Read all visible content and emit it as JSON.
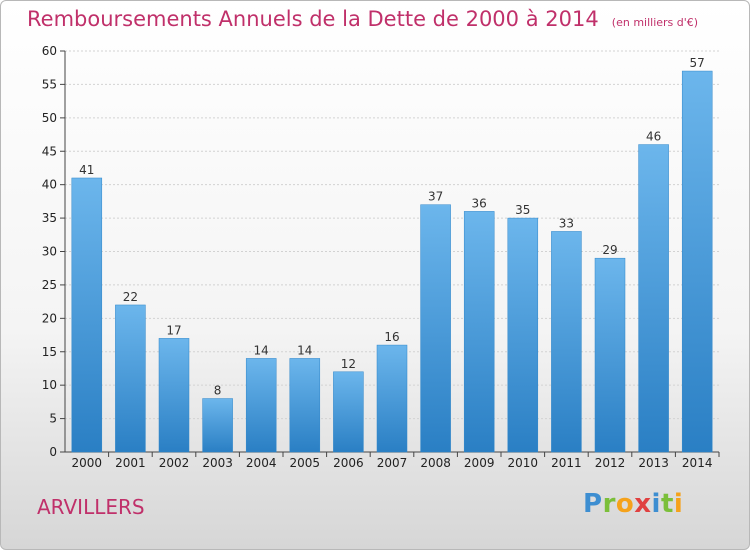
{
  "title": "Remboursements Annuels de la Dette de 2000 à 2014",
  "unit": "(en milliers d'€)",
  "commune": "ARVILLERS",
  "logo": "Proxiti",
  "colors": {
    "bar_light": "#6cb6ec",
    "bar_dark": "#2a7fc4",
    "title": "#c0306a"
  },
  "chart_data": {
    "type": "bar",
    "title": "Remboursements Annuels de la Dette de 2000 à 2014",
    "xlabel": "",
    "ylabel": "",
    "categories": [
      "2000",
      "2001",
      "2002",
      "2003",
      "2004",
      "2005",
      "2006",
      "2007",
      "2008",
      "2009",
      "2010",
      "2011",
      "2012",
      "2013",
      "2014"
    ],
    "values": [
      41,
      22,
      17,
      8,
      14,
      14,
      12,
      16,
      37,
      36,
      35,
      33,
      29,
      46,
      57
    ],
    "ylim": [
      0,
      60
    ],
    "yticks": [
      0,
      5,
      10,
      15,
      20,
      25,
      30,
      35,
      40,
      45,
      50,
      55,
      60
    ],
    "grid": true,
    "legend": "none"
  }
}
